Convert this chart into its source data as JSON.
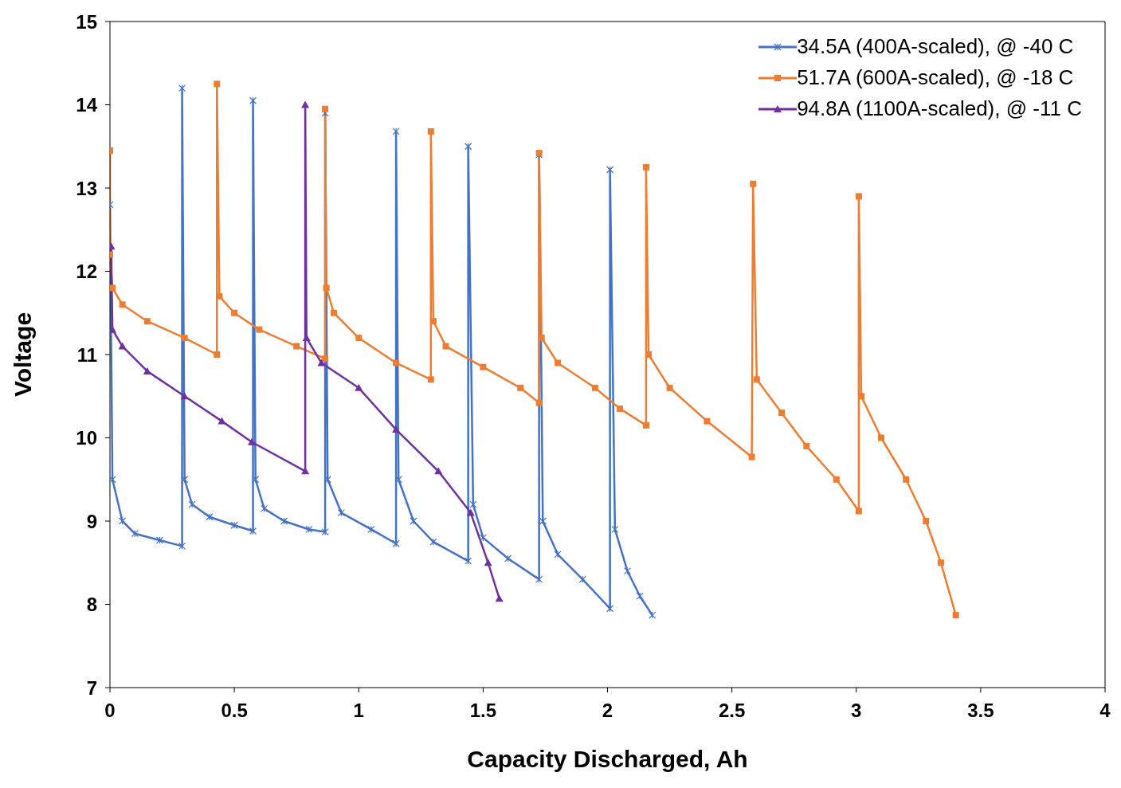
{
  "chart_data": {
    "type": "line",
    "xlabel": "Capacity Discharged, Ah",
    "ylabel": "Voltage",
    "xlim": [
      0,
      4
    ],
    "ylim": [
      7,
      15
    ],
    "xticks": [
      0,
      0.5,
      1,
      1.5,
      2,
      2.5,
      3,
      3.5,
      4
    ],
    "yticks": [
      7,
      8,
      9,
      10,
      11,
      12,
      13,
      14,
      15
    ],
    "grid": false,
    "legend": "top right",
    "line_style": "solid",
    "series": [
      {
        "name": "34.5A (400A-scaled), @ -40 C",
        "color": "#4472c4",
        "marker": "cross",
        "x": [
          0,
          0.01,
          0.05,
          0.1,
          0.2,
          0.29,
          0.29,
          0.3,
          0.33,
          0.4,
          0.5,
          0.575,
          0.575,
          0.585,
          0.62,
          0.7,
          0.8,
          0.865,
          0.865,
          0.875,
          0.93,
          1.05,
          1.15,
          1.15,
          1.16,
          1.22,
          1.3,
          1.44,
          1.44,
          1.46,
          1.5,
          1.6,
          1.725,
          1.725,
          1.74,
          1.8,
          1.9,
          2.01,
          2.01,
          2.03,
          2.08,
          2.13,
          2.18
        ],
        "values": [
          12.8,
          9.5,
          9.0,
          8.85,
          8.77,
          8.7,
          14.2,
          9.5,
          9.2,
          9.05,
          8.95,
          8.88,
          14.05,
          9.5,
          9.15,
          9.0,
          8.9,
          8.87,
          13.9,
          9.5,
          9.1,
          8.9,
          8.73,
          13.68,
          9.5,
          9.0,
          8.75,
          8.52,
          13.5,
          9.2,
          8.8,
          8.55,
          8.3,
          13.4,
          9.0,
          8.6,
          8.3,
          7.95,
          13.22,
          8.9,
          8.4,
          8.1,
          7.87
        ]
      },
      {
        "name": "51.7A (600A-scaled), @ -18 C",
        "color": "#ed7d31",
        "marker": "square",
        "x": [
          0,
          0,
          0.01,
          0.05,
          0.15,
          0.3,
          0.43,
          0.43,
          0.44,
          0.5,
          0.6,
          0.75,
          0.865,
          0.865,
          0.87,
          0.9,
          1.0,
          1.15,
          1.29,
          1.29,
          1.3,
          1.35,
          1.5,
          1.65,
          1.725,
          1.725,
          1.735,
          1.8,
          1.95,
          2.05,
          2.155,
          2.155,
          2.165,
          2.25,
          2.4,
          2.58,
          2.585,
          2.6,
          2.7,
          2.8,
          2.92,
          3.01,
          3.01,
          3.02,
          3.1,
          3.2,
          3.28,
          3.34,
          3.4
        ],
        "values": [
          13.45,
          12.2,
          11.8,
          11.6,
          11.4,
          11.2,
          11.0,
          14.25,
          11.7,
          11.5,
          11.3,
          11.1,
          10.95,
          13.95,
          11.8,
          11.5,
          11.2,
          10.9,
          10.7,
          13.68,
          11.4,
          11.1,
          10.85,
          10.6,
          10.42,
          13.42,
          11.2,
          10.9,
          10.6,
          10.35,
          10.15,
          13.25,
          11.0,
          10.6,
          10.2,
          9.77,
          13.05,
          10.7,
          10.3,
          9.9,
          9.5,
          9.12,
          12.9,
          10.5,
          10.0,
          9.5,
          9.0,
          8.5,
          7.87
        ]
      },
      {
        "name": "94.8A (1100A-scaled), @ -11 C",
        "color": "#7030a0",
        "marker": "triangle",
        "x": [
          0.005,
          0.01,
          0.05,
          0.15,
          0.3,
          0.45,
          0.57,
          0.785,
          0.785,
          0.79,
          0.85,
          1.0,
          1.15,
          1.32,
          1.45,
          1.52,
          1.565
        ],
        "values": [
          12.3,
          11.3,
          11.1,
          10.8,
          10.5,
          10.2,
          9.95,
          9.6,
          14.0,
          11.2,
          10.9,
          10.6,
          10.1,
          9.6,
          9.1,
          8.5,
          8.07
        ]
      }
    ]
  }
}
